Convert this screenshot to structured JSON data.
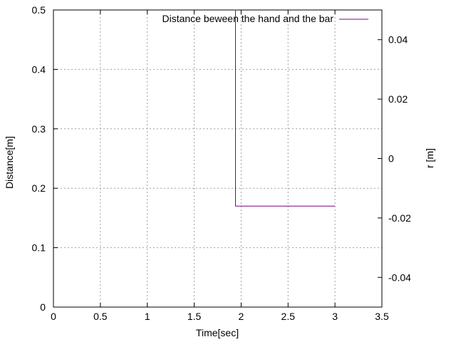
{
  "chart_data": {
    "type": "line",
    "title": "",
    "xlabel": "Time[sec]",
    "ylabel": "Distance[m]",
    "y2label": "r [m]",
    "xlim": [
      0,
      3.5
    ],
    "ylim": [
      0,
      0.5
    ],
    "y2lim": [
      -0.05,
      0.05
    ],
    "grid": true,
    "legend_position": "top-right",
    "x_ticks": [
      "0",
      "0.5",
      "1",
      "1.5",
      "2",
      "2.5",
      "3",
      "3.5"
    ],
    "y_ticks": [
      "0",
      "0.1",
      "0.2",
      "0.3",
      "0.4",
      "0.5"
    ],
    "y2_ticks": [
      "-0.04",
      "-0.02",
      "0",
      "0.02",
      "0.04"
    ],
    "series": [
      {
        "name": "Distance beween the hand and  the bar",
        "color": "#800080",
        "x": [
          1.93,
          1.94,
          1.94,
          3.0
        ],
        "y": [
          0.5,
          0.5,
          0.17,
          0.17
        ]
      }
    ]
  }
}
